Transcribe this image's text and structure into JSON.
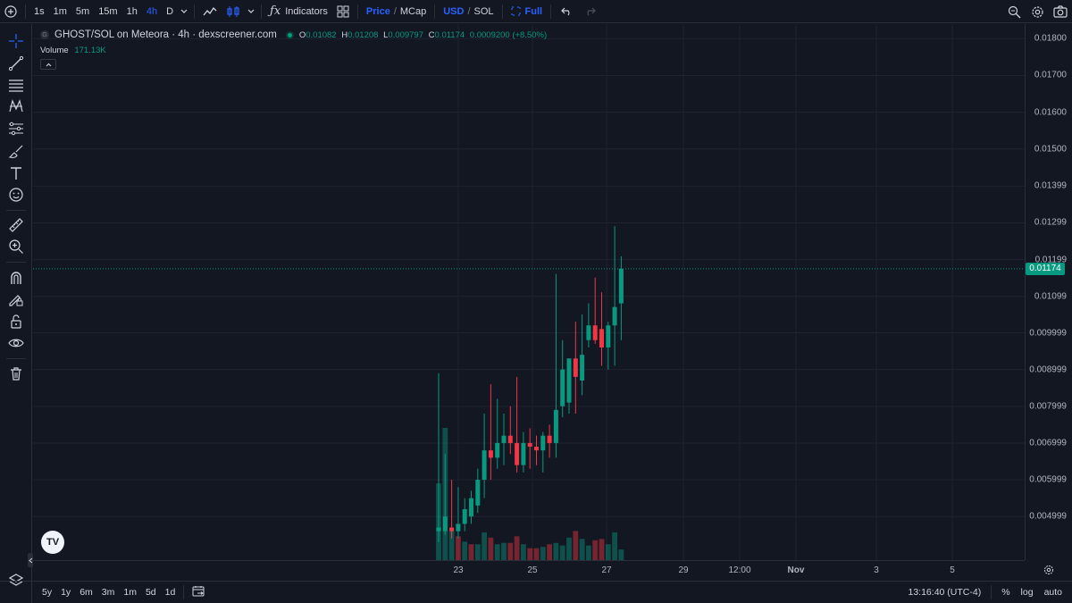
{
  "toolbar": {
    "intervals": [
      "1s",
      "1m",
      "5m",
      "15m",
      "1h",
      "4h",
      "D"
    ],
    "active_interval": "4h",
    "indicators_label": "Indicators",
    "price_label": "Price",
    "mcap_label": "MCap",
    "usd_label": "USD",
    "sol_label": "SOL",
    "full_label": "Full",
    "slash": "/"
  },
  "legend": {
    "title": "GHOST/SOL on Meteora · 4h · dexscreener.com",
    "o_label": "O",
    "o_value": "0.01082",
    "h_label": "H",
    "h_value": "0.01208",
    "l_label": "L",
    "l_value": "0.009797",
    "c_label": "C",
    "c_value": "0.01174",
    "change": "0.0009200 (+8.50%)",
    "volume_label": "Volume",
    "volume_value": "171.13K",
    "tv_logo": "TV"
  },
  "colors": {
    "up": "#089981",
    "down": "#f23645",
    "accent": "#2962ff"
  },
  "price_axis": {
    "labels": [
      "0.01800",
      "0.01700",
      "0.01600",
      "0.01500",
      "0.01399",
      "0.01299",
      "0.01199",
      "0.01099",
      "0.009999",
      "0.008999",
      "0.007999",
      "0.006999",
      "0.005999",
      "0.004999"
    ],
    "last_price": "0.01174"
  },
  "time_axis": {
    "labels": [
      "23",
      "25",
      "27",
      "29",
      "12:00",
      "Nov",
      "3",
      "5"
    ]
  },
  "chart_data": {
    "type": "candlestick",
    "interval": "4h",
    "ylim": [
      0.0043,
      0.0183
    ],
    "candles": [
      {
        "o": 0.0046,
        "h": 0.0089,
        "l": 0.0043,
        "c": 0.0047
      },
      {
        "o": 0.0046,
        "h": 0.0067,
        "l": 0.0045,
        "c": 0.005
      },
      {
        "o": 0.0047,
        "h": 0.006,
        "l": 0.0044,
        "c": 0.0046
      },
      {
        "o": 0.0046,
        "h": 0.0058,
        "l": 0.0044,
        "c": 0.0048
      },
      {
        "o": 0.0048,
        "h": 0.0055,
        "l": 0.0046,
        "c": 0.0052
      },
      {
        "o": 0.005,
        "h": 0.0057,
        "l": 0.0048,
        "c": 0.0055
      },
      {
        "o": 0.0053,
        "h": 0.0063,
        "l": 0.0051,
        "c": 0.006
      },
      {
        "o": 0.006,
        "h": 0.0078,
        "l": 0.0055,
        "c": 0.0068
      },
      {
        "o": 0.0068,
        "h": 0.0086,
        "l": 0.006,
        "c": 0.0066
      },
      {
        "o": 0.0066,
        "h": 0.0082,
        "l": 0.0063,
        "c": 0.007
      },
      {
        "o": 0.007,
        "h": 0.0078,
        "l": 0.0064,
        "c": 0.0072
      },
      {
        "o": 0.0072,
        "h": 0.008,
        "l": 0.0067,
        "c": 0.007
      },
      {
        "o": 0.007,
        "h": 0.0088,
        "l": 0.0062,
        "c": 0.0064
      },
      {
        "o": 0.0064,
        "h": 0.0073,
        "l": 0.0062,
        "c": 0.007
      },
      {
        "o": 0.007,
        "h": 0.0074,
        "l": 0.0063,
        "c": 0.0069
      },
      {
        "o": 0.0069,
        "h": 0.0072,
        "l": 0.0064,
        "c": 0.0068
      },
      {
        "o": 0.0068,
        "h": 0.0073,
        "l": 0.0062,
        "c": 0.0072
      },
      {
        "o": 0.0072,
        "h": 0.0075,
        "l": 0.0066,
        "c": 0.007
      },
      {
        "o": 0.007,
        "h": 0.0116,
        "l": 0.0066,
        "c": 0.0079
      },
      {
        "o": 0.008,
        "h": 0.0098,
        "l": 0.0077,
        "c": 0.009
      },
      {
        "o": 0.0081,
        "h": 0.0093,
        "l": 0.0078,
        "c": 0.0093
      },
      {
        "o": 0.0093,
        "h": 0.0103,
        "l": 0.0078,
        "c": 0.0088
      },
      {
        "o": 0.0087,
        "h": 0.0105,
        "l": 0.0083,
        "c": 0.0094
      },
      {
        "o": 0.0098,
        "h": 0.0108,
        "l": 0.0096,
        "c": 0.0102
      },
      {
        "o": 0.0102,
        "h": 0.0115,
        "l": 0.0097,
        "c": 0.0098
      },
      {
        "o": 0.0101,
        "h": 0.0111,
        "l": 0.0091,
        "c": 0.0096
      },
      {
        "o": 0.0096,
        "h": 0.0103,
        "l": 0.009,
        "c": 0.0102
      },
      {
        "o": 0.0102,
        "h": 0.0129,
        "l": 0.0091,
        "c": 0.0107
      },
      {
        "o": 0.0108,
        "h": 0.01208,
        "l": 0.009797,
        "c": 0.01174
      }
    ],
    "volume": [
      {
        "v": 0.58,
        "up": true
      },
      {
        "v": 1.0,
        "up": true
      },
      {
        "v": 0.22,
        "up": true
      },
      {
        "v": 0.18,
        "up": false
      },
      {
        "v": 0.14,
        "up": true
      },
      {
        "v": 0.12,
        "up": false
      },
      {
        "v": 0.12,
        "up": true
      },
      {
        "v": 0.21,
        "up": true
      },
      {
        "v": 0.17,
        "up": false
      },
      {
        "v": 0.12,
        "up": true
      },
      {
        "v": 0.13,
        "up": true
      },
      {
        "v": 0.13,
        "up": false
      },
      {
        "v": 0.18,
        "up": false
      },
      {
        "v": 0.12,
        "up": true
      },
      {
        "v": 0.09,
        "up": false
      },
      {
        "v": 0.09,
        "up": false
      },
      {
        "v": 0.1,
        "up": true
      },
      {
        "v": 0.12,
        "up": false
      },
      {
        "v": 0.13,
        "up": true
      },
      {
        "v": 0.11,
        "up": true
      },
      {
        "v": 0.17,
        "up": true
      },
      {
        "v": 0.22,
        "up": false
      },
      {
        "v": 0.16,
        "up": true
      },
      {
        "v": 0.11,
        "up": true
      },
      {
        "v": 0.15,
        "up": false
      },
      {
        "v": 0.16,
        "up": false
      },
      {
        "v": 0.12,
        "up": true
      },
      {
        "v": 0.21,
        "up": true
      },
      {
        "v": 0.08,
        "up": true
      }
    ],
    "last_price": 0.01174
  },
  "bottom": {
    "ranges": [
      "5y",
      "1y",
      "6m",
      "3m",
      "1m",
      "5d",
      "1d"
    ],
    "time": "13:16:40 (UTC-4)",
    "percent": "%",
    "log": "log",
    "auto": "auto"
  }
}
